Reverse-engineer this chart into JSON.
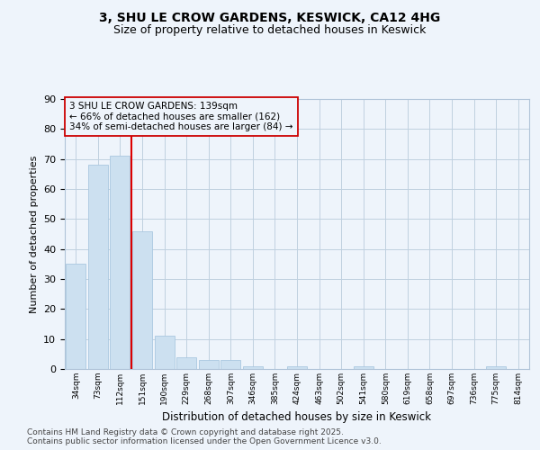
{
  "title1": "3, SHU LE CROW GARDENS, KESWICK, CA12 4HG",
  "title2": "Size of property relative to detached houses in Keswick",
  "xlabel": "Distribution of detached houses by size in Keswick",
  "ylabel": "Number of detached properties",
  "bar_labels": [
    "34sqm",
    "73sqm",
    "112sqm",
    "151sqm",
    "190sqm",
    "229sqm",
    "268sqm",
    "307sqm",
    "346sqm",
    "385sqm",
    "424sqm",
    "463sqm",
    "502sqm",
    "541sqm",
    "580sqm",
    "619sqm",
    "658sqm",
    "697sqm",
    "736sqm",
    "775sqm",
    "814sqm"
  ],
  "bar_values": [
    35,
    68,
    71,
    46,
    11,
    4,
    3,
    3,
    1,
    0,
    1,
    0,
    0,
    1,
    0,
    0,
    0,
    0,
    0,
    1,
    0
  ],
  "bar_color": "#cce0f0",
  "bar_edgecolor": "#aac8e0",
  "vline_color": "#dd0000",
  "annotation_text": "3 SHU LE CROW GARDENS: 139sqm\n← 66% of detached houses are smaller (162)\n34% of semi-detached houses are larger (84) →",
  "annotation_box_edgecolor": "#cc0000",
  "grid_color": "#c0d0e0",
  "background_color": "#eef4fb",
  "footer": "Contains HM Land Registry data © Crown copyright and database right 2025.\nContains public sector information licensed under the Open Government Licence v3.0.",
  "ylim": [
    0,
    90
  ],
  "yticks": [
    0,
    10,
    20,
    30,
    40,
    50,
    60,
    70,
    80,
    90
  ]
}
